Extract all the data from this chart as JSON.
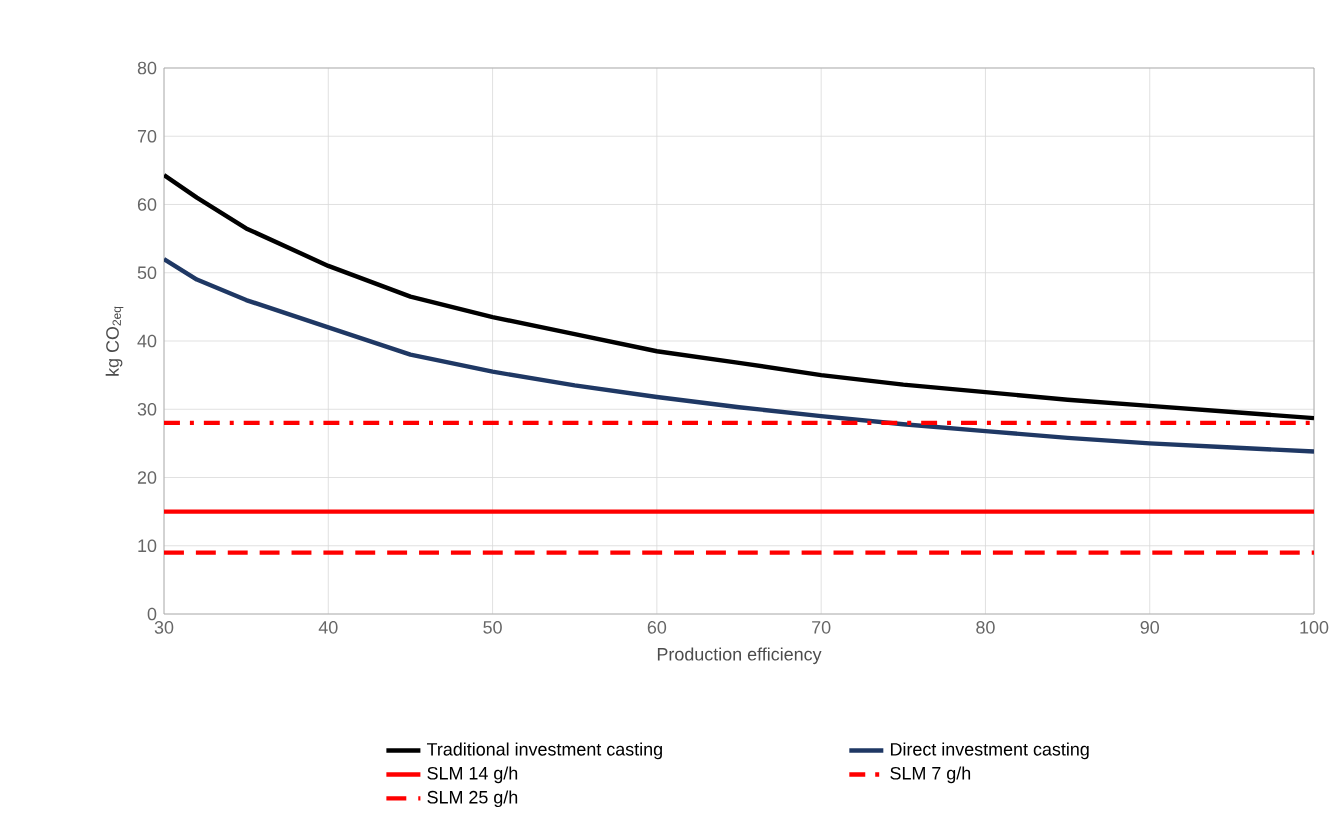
{
  "chart_data": {
    "type": "line",
    "xlabel": "Production  efficiency",
    "ylabel": "kg CO$_{2eq}$",
    "xlim": [
      30,
      100
    ],
    "ylim": [
      0,
      80
    ],
    "xticks": [
      30,
      40,
      50,
      60,
      70,
      80,
      90,
      100
    ],
    "yticks": [
      0,
      10,
      20,
      30,
      40,
      50,
      60,
      70,
      80
    ],
    "grid": true,
    "legend": "bottom",
    "marker": "none",
    "series": [
      {
        "name": "Traditional investment casting",
        "color": "#000000",
        "line_style": "solid",
        "x": [
          30,
          32,
          35,
          40,
          45,
          50,
          55,
          60,
          65,
          70,
          75,
          80,
          85,
          90,
          95,
          100
        ],
        "values": [
          64.3,
          61,
          56.5,
          51,
          46.5,
          43.5,
          41,
          38.5,
          36.8,
          35,
          33.6,
          32.5,
          31.4,
          30.5,
          29.6,
          28.7
        ]
      },
      {
        "name": "Direct investment casting",
        "color": "#1f3864",
        "line_style": "solid",
        "x": [
          30,
          32,
          35,
          40,
          45,
          50,
          55,
          60,
          65,
          70,
          75,
          80,
          85,
          90,
          95,
          100
        ],
        "values": [
          52,
          49,
          46,
          42,
          38,
          35.5,
          33.5,
          31.8,
          30.3,
          29,
          27.8,
          26.8,
          25.8,
          25,
          24.4,
          23.8
        ]
      },
      {
        "name": "SLM 14 g/h",
        "color": "#ff0000",
        "line_style": "solid",
        "x": [
          30,
          100
        ],
        "values": [
          15,
          15
        ]
      },
      {
        "name": "SLM 7 g/h",
        "color": "#ff0000",
        "line_style": "dashdot",
        "x": [
          30,
          100
        ],
        "values": [
          28,
          28
        ]
      },
      {
        "name": "SLM 25 g/h",
        "color": "#ff0000",
        "line_style": "dashed",
        "x": [
          30,
          100
        ],
        "values": [
          9,
          9
        ]
      }
    ]
  }
}
